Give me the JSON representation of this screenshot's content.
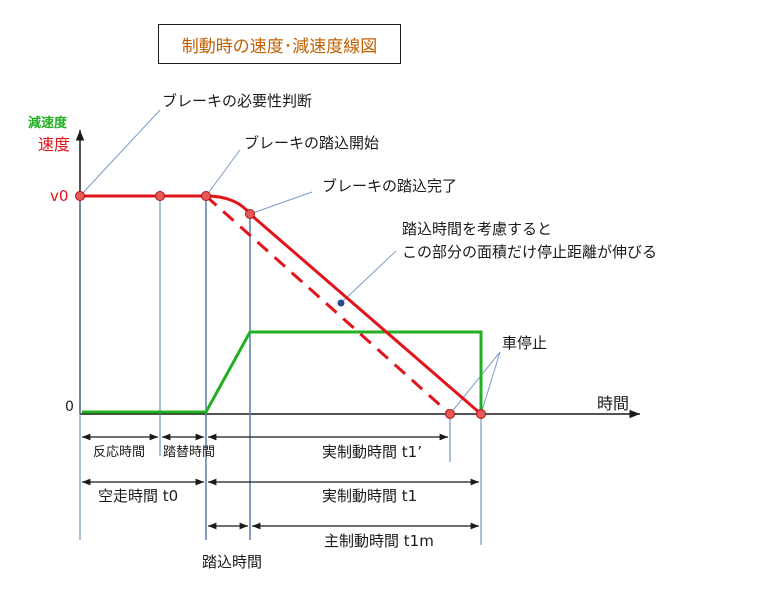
{
  "title": "制動時の速度･減速度線図",
  "axis": {
    "y_deceleration": "減速度",
    "y_speed": "速度",
    "x_time": "時間",
    "v0": "v0",
    "zero": "0"
  },
  "callouts": {
    "judge": "ブレーキの必要性判断",
    "press_start": "ブレーキの踏込開始",
    "press_done": "ブレーキの踏込完了",
    "area_line1": "踏込時間を考慮すると",
    "area_line2": "この部分の面積だけ停止距離が伸びる",
    "stop": "車停止"
  },
  "intervals": {
    "reaction": "反応時間",
    "switch": "踏替時間",
    "actual_braking_prime": "実制動時間 t1’",
    "free_running": "空走時間 t0",
    "actual_braking": "実制動時間 t1",
    "main_braking": "主制動時間 t1m",
    "pressing": "踏込時間"
  },
  "colors": {
    "speed": "#e0141a",
    "deceleration": "#22b022",
    "title_text": "#c06000",
    "axis": "#1a1a1a",
    "guide": "#5a7fa8",
    "callout": "#7a9cc8"
  }
}
